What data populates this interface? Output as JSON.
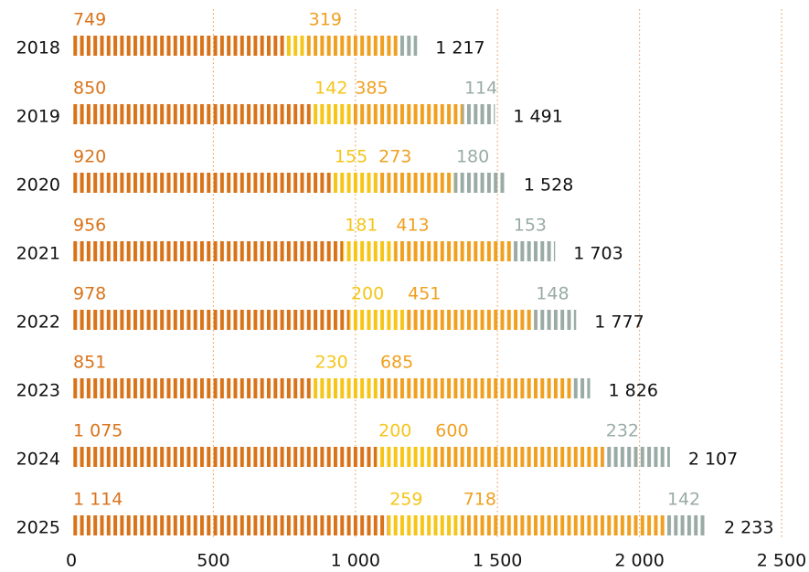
{
  "chart_data": {
    "type": "bar",
    "orientation": "horizontal",
    "stacked": true,
    "categories": [
      "2018",
      "2019",
      "2020",
      "2021",
      "2022",
      "2023",
      "2024",
      "2025"
    ],
    "series": [
      {
        "color": "#d9731a",
        "values": [
          749,
          850,
          920,
          956,
          978,
          851,
          1075,
          1114
        ],
        "value_labels": [
          "749",
          "850",
          "920",
          "956",
          "978",
          "851",
          "1 075",
          "1 114"
        ]
      },
      {
        "color": "#f5c518",
        "values": [
          80,
          142,
          155,
          181,
          200,
          230,
          200,
          259
        ],
        "value_labels": [
          null,
          "142",
          "155",
          "181",
          "200",
          "230",
          "200",
          "259"
        ]
      },
      {
        "color": "#f0a020",
        "values": [
          319,
          385,
          273,
          413,
          451,
          685,
          600,
          718
        ],
        "value_labels": [
          "319",
          "385",
          "273",
          "413",
          "451",
          "685",
          "600",
          "718"
        ]
      },
      {
        "color": "#9aaba6",
        "values": [
          69,
          114,
          180,
          153,
          148,
          60,
          232,
          142
        ],
        "value_labels": [
          null,
          "114",
          "180",
          "153",
          "148",
          null,
          "232",
          "142"
        ]
      }
    ],
    "totals": [
      1217,
      1491,
      1528,
      1703,
      1777,
      1826,
      2107,
      2233
    ],
    "total_labels": [
      "1 217",
      "1 491",
      "1 528",
      "1 703",
      "1 777",
      "1 826",
      "2 107",
      "2 233"
    ],
    "xlim": [
      0,
      2500
    ],
    "xticks": [
      0,
      {
        "value": 500,
        "label": "500"
      },
      {
        "value": 1000,
        "label": "1 000"
      },
      {
        "value": 1500,
        "label": "1 500"
      },
      {
        "value": 2000,
        "label": "2 000"
      },
      {
        "value": 2500,
        "label": "2 500"
      }
    ],
    "grid": true
  }
}
